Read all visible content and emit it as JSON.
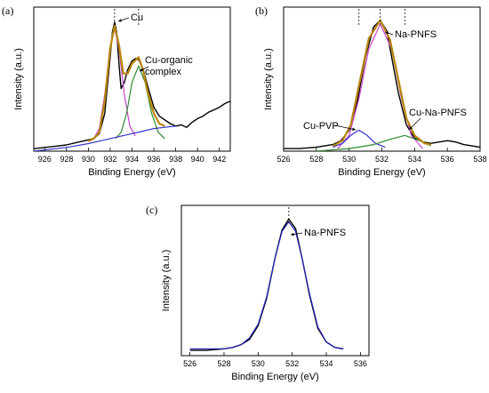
{
  "chart_data": [
    {
      "panel_label": "(a)",
      "type": "line",
      "xlabel": "Binding Energy (eV)",
      "ylabel": "Intensity (a.u.)",
      "xlim": [
        925,
        943
      ],
      "xticks": [
        926,
        928,
        930,
        932,
        934,
        936,
        938,
        940,
        942
      ],
      "ylim": [
        0,
        1.15
      ],
      "annotations": [
        "Cu",
        "Cu-organic complex"
      ],
      "peak_markers": [
        932.4,
        934.6
      ],
      "series": [
        {
          "color": "#000000",
          "role": "measured",
          "x": [
            925,
            926,
            927,
            928,
            929,
            929.5,
            930,
            930.5,
            931,
            931.5,
            932,
            932.2,
            932.4,
            932.6,
            932.8,
            933,
            933.3,
            933.6,
            934,
            934.3,
            934.6,
            935,
            935.5,
            936,
            936.5,
            937,
            937.5,
            938,
            938.5,
            939,
            939.5,
            940,
            940.5,
            941,
            941.5,
            942,
            942.5,
            943
          ],
          "y": [
            0.02,
            0.03,
            0.04,
            0.05,
            0.07,
            0.08,
            0.09,
            0.1,
            0.14,
            0.3,
            0.75,
            0.95,
            1.03,
            0.95,
            0.7,
            0.5,
            0.55,
            0.65,
            0.72,
            0.74,
            0.73,
            0.66,
            0.5,
            0.35,
            0.28,
            0.25,
            0.22,
            0.2,
            0.21,
            0.19,
            0.23,
            0.26,
            0.28,
            0.31,
            0.33,
            0.35,
            0.38,
            0.4
          ]
        },
        {
          "color": "#cc44cc",
          "role": "Cu component",
          "x": [
            930.5,
            931,
            931.5,
            932,
            932.4,
            932.8,
            933.3,
            933.8,
            934.3
          ],
          "y": [
            0.1,
            0.18,
            0.45,
            0.82,
            0.98,
            0.82,
            0.45,
            0.2,
            0.12
          ]
        },
        {
          "color": "#2e8b2e",
          "role": "Cu-organic complex component",
          "x": [
            932.5,
            933,
            933.5,
            934,
            934.6,
            935.2,
            935.8,
            936.4,
            937
          ],
          "y": [
            0.1,
            0.15,
            0.3,
            0.55,
            0.68,
            0.55,
            0.3,
            0.15,
            0.1
          ]
        },
        {
          "color": "#3333cc",
          "role": "background",
          "x": [
            925,
            928,
            930,
            931,
            932,
            933,
            934,
            935,
            936,
            937,
            938
          ],
          "y": [
            0.0,
            0.03,
            0.06,
            0.08,
            0.1,
            0.12,
            0.14,
            0.16,
            0.18,
            0.19,
            0.2
          ]
        },
        {
          "color": "#b8860b",
          "role": "envelope",
          "x": [
            930,
            930.5,
            931,
            931.5,
            932,
            932.4,
            932.8,
            933.2,
            933.6,
            934,
            934.6,
            935,
            935.5,
            936,
            936.5,
            937
          ],
          "y": [
            0.08,
            0.1,
            0.15,
            0.4,
            0.82,
            1.0,
            0.85,
            0.62,
            0.62,
            0.7,
            0.75,
            0.65,
            0.45,
            0.3,
            0.22,
            0.2
          ]
        }
      ]
    },
    {
      "panel_label": "(b)",
      "type": "line",
      "xlabel": "Binding Energy (eV)",
      "ylabel": "Intensity (a.u.)",
      "xlim": [
        526,
        538
      ],
      "xticks": [
        526,
        528,
        530,
        532,
        534,
        536,
        538
      ],
      "ylim": [
        0,
        1.1
      ],
      "annotations": [
        "Na-PNFS",
        "Cu-PVP",
        "Cu-Na-PNFS"
      ],
      "peak_markers": [
        530.6,
        531.9,
        533.4
      ],
      "series": [
        {
          "color": "#000000",
          "role": "measured",
          "x": [
            526,
            527,
            528,
            529,
            529.5,
            530,
            530.5,
            531,
            531.5,
            531.9,
            532.3,
            532.7,
            533,
            533.5,
            534,
            534.5,
            535,
            535.5,
            536,
            536.5,
            537,
            537.5,
            538
          ],
          "y": [
            0.02,
            0.02,
            0.03,
            0.05,
            0.08,
            0.16,
            0.38,
            0.72,
            0.95,
            1.0,
            0.92,
            0.65,
            0.45,
            0.2,
            0.1,
            0.07,
            0.06,
            0.07,
            0.08,
            0.07,
            0.05,
            0.04,
            0.03
          ]
        },
        {
          "color": "#cc44cc",
          "role": "Na-PNFS component",
          "x": [
            529.3,
            530,
            530.6,
            531.2,
            531.9,
            532.6,
            533.2,
            533.8,
            534.5
          ],
          "y": [
            0.02,
            0.12,
            0.4,
            0.78,
            0.97,
            0.78,
            0.4,
            0.12,
            0.02
          ]
        },
        {
          "color": "#3333cc",
          "role": "Cu-PVP component",
          "x": [
            529,
            529.6,
            530.1,
            530.6,
            531.1,
            531.6,
            532.2
          ],
          "y": [
            0.03,
            0.06,
            0.12,
            0.16,
            0.12,
            0.06,
            0.03
          ]
        },
        {
          "color": "#2e8b2e",
          "role": "Cu-Na-PNFS component",
          "x": [
            528,
            530,
            531.5,
            532.5,
            533.4,
            534.3,
            535
          ],
          "y": [
            0.0,
            0.02,
            0.05,
            0.09,
            0.12,
            0.08,
            0.04
          ]
        },
        {
          "color": "#b8860b",
          "role": "envelope",
          "x": [
            529,
            529.6,
            530.1,
            530.6,
            531.2,
            531.9,
            532.5,
            533,
            533.5,
            534,
            534.6,
            535
          ],
          "y": [
            0.04,
            0.08,
            0.2,
            0.5,
            0.86,
            1.0,
            0.85,
            0.55,
            0.25,
            0.12,
            0.06,
            0.05
          ]
        }
      ]
    },
    {
      "panel_label": "(c)",
      "type": "line",
      "xlabel": "Binding Energy (eV)",
      "ylabel": "Intensity (a.u.)",
      "xlim": [
        525.5,
        536.5
      ],
      "xticks": [
        526,
        528,
        530,
        532,
        534,
        536
      ],
      "ylim": [
        0,
        1.1
      ],
      "annotations": [
        "Na-PNFS"
      ],
      "peak_markers": [
        531.8
      ],
      "series": [
        {
          "color": "#000000",
          "role": "measured",
          "x": [
            526,
            527,
            528,
            528.5,
            529,
            529.5,
            530,
            530.5,
            531,
            531.4,
            531.8,
            532.2,
            532.6,
            533,
            533.5,
            534,
            534.5,
            535
          ],
          "y": [
            0.04,
            0.04,
            0.05,
            0.06,
            0.08,
            0.12,
            0.22,
            0.42,
            0.72,
            0.92,
            1.0,
            0.93,
            0.7,
            0.45,
            0.2,
            0.1,
            0.06,
            0.05
          ]
        },
        {
          "color": "#2222bb",
          "role": "fit",
          "x": [
            526,
            527,
            528,
            528.5,
            529,
            529.5,
            530,
            530.5,
            531,
            531.4,
            531.8,
            532.2,
            532.6,
            533,
            533.5,
            534,
            534.5,
            535
          ],
          "y": [
            0.05,
            0.05,
            0.05,
            0.06,
            0.08,
            0.13,
            0.23,
            0.43,
            0.72,
            0.91,
            0.98,
            0.91,
            0.7,
            0.46,
            0.21,
            0.1,
            0.06,
            0.05
          ]
        }
      ]
    }
  ]
}
